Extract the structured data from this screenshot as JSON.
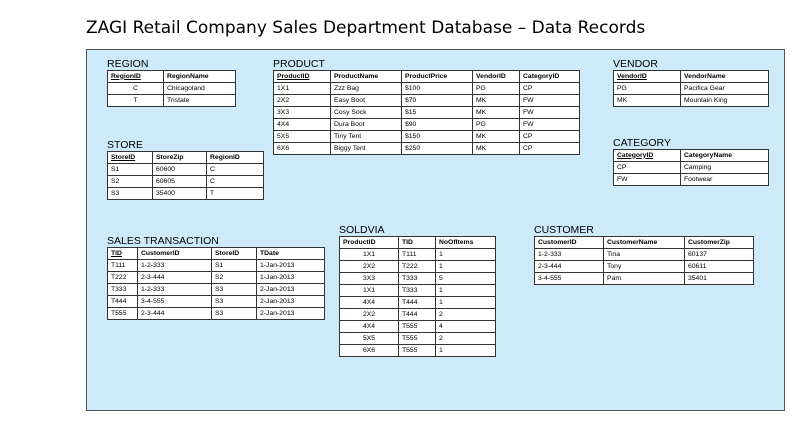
{
  "title": "ZAGI Retail Company Sales Department Database – Data Records",
  "region": {
    "name": "REGION",
    "headers": [
      "RegionID",
      "RegionName"
    ],
    "rows": [
      [
        "C",
        "Chicagoland"
      ],
      [
        "T",
        "Tristate"
      ]
    ]
  },
  "product": {
    "name": "PRODUCT",
    "headers": [
      "ProductID",
      "ProductName",
      "ProductPrice",
      "VendorID",
      "CategoryID"
    ],
    "rows": [
      [
        "1X1",
        "Zzz Bag",
        "$100",
        "PG",
        "CP"
      ],
      [
        "2X2",
        "Easy Boot",
        "$70",
        "MK",
        "FW"
      ],
      [
        "3X3",
        "Cosy Sock",
        "$15",
        "MK",
        "FW"
      ],
      [
        "4X4",
        "Dura Boot",
        "$90",
        "PG",
        "FW"
      ],
      [
        "5X5",
        "Tiny Tent",
        "$150",
        "MK",
        "CP"
      ],
      [
        "6X6",
        "Biggy Tent",
        "$250",
        "MK",
        "CP"
      ]
    ]
  },
  "vendor": {
    "name": "VENDOR",
    "headers": [
      "VendorID",
      "VendorName"
    ],
    "rows": [
      [
        "PG",
        "Pacifica Gear"
      ],
      [
        "MK",
        "Mountain King"
      ]
    ]
  },
  "category": {
    "name": "CATEGORY",
    "headers": [
      "CategoryID",
      "CategoryName"
    ],
    "rows": [
      [
        "CP",
        "Camping"
      ],
      [
        "FW",
        "Footwear"
      ]
    ]
  },
  "store": {
    "name": "STORE",
    "headers": [
      "StoreID",
      "StoreZip",
      "RegionID"
    ],
    "rows": [
      [
        "S1",
        "60600",
        "C"
      ],
      [
        "S2",
        "60605",
        "C"
      ],
      [
        "S3",
        "35400",
        "T"
      ]
    ]
  },
  "sales_transaction": {
    "name": "SALES TRANSACTION",
    "headers": [
      "TID",
      "CustomerID",
      "StoreID",
      "TDate"
    ],
    "rows": [
      [
        "T111",
        "1-2-333",
        "S1",
        "1-Jan-2013"
      ],
      [
        "T222",
        "2-3-444",
        "S2",
        "1-Jan-2013"
      ],
      [
        "T333",
        "1-2-333",
        "S3",
        "2-Jan-2013"
      ],
      [
        "T444",
        "3-4-555",
        "S3",
        "2-Jan-2013"
      ],
      [
        "T555",
        "2-3-444",
        "S3",
        "2-Jan-2013"
      ]
    ]
  },
  "soldvia": {
    "name": "SOLDVIA",
    "headers": [
      "ProductID",
      "TID",
      "NoOfItems"
    ],
    "rows": [
      [
        "1X1",
        "T111",
        "1"
      ],
      [
        "2X2",
        "T222",
        "1"
      ],
      [
        "3X3",
        "T333",
        "5"
      ],
      [
        "1X1",
        "T333",
        "1"
      ],
      [
        "4X4",
        "T444",
        "1"
      ],
      [
        "2X2",
        "T444",
        "2"
      ],
      [
        "4X4",
        "T555",
        "4"
      ],
      [
        "5X5",
        "T555",
        "2"
      ],
      [
        "6X6",
        "T555",
        "1"
      ]
    ]
  },
  "customer": {
    "name": "CUSTOMER",
    "headers": [
      "CustomerID",
      "CustomerName",
      "CustomerZip"
    ],
    "rows": [
      [
        "1-2-333",
        "Tina",
        "60137"
      ],
      [
        "2-3-444",
        "Tony",
        "60611"
      ],
      [
        "3-4-555",
        "Pam",
        "35401"
      ]
    ]
  }
}
